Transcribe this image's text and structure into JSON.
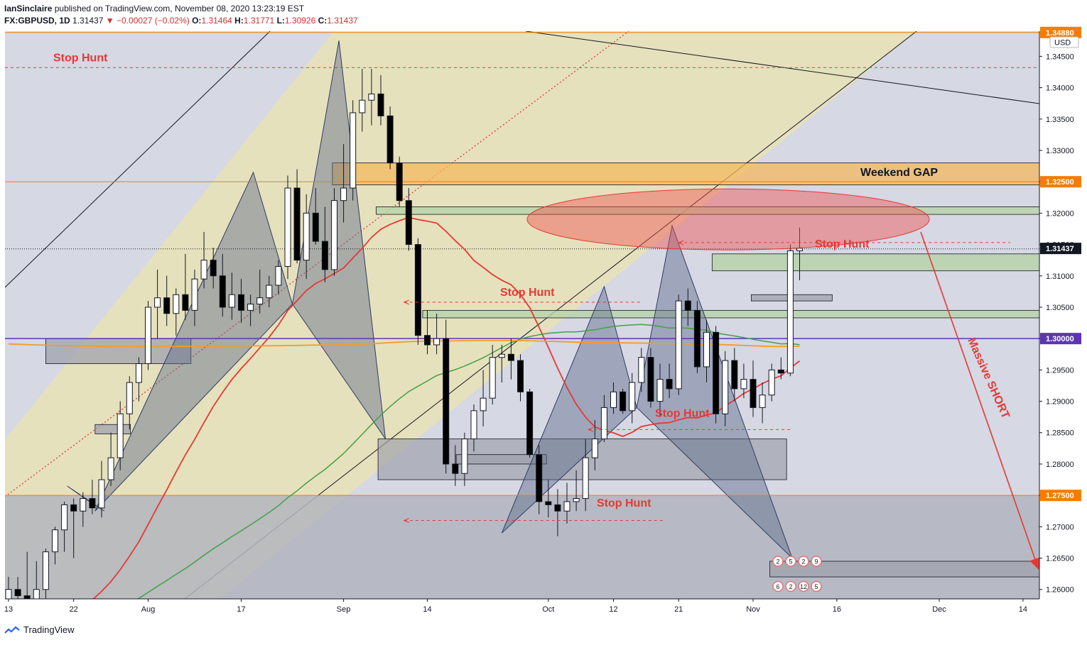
{
  "header": {
    "author": "IanSinclaire",
    "published_text": "published on TradingView.com, November 08, 2020 13:23:19 EST",
    "symbol": "FX:GBPUSD, 1D",
    "last": "1.31437",
    "change_arrow": "▼",
    "change": "−0.00027 (−0.02%)",
    "o_label": "O:",
    "o": "1.31464",
    "h_label": "H:",
    "h": "1.31771",
    "l_label": "L:",
    "l": "1.30926",
    "c_label": "C:",
    "c": "1.31437"
  },
  "footer": {
    "brand": "TradingView",
    "logo_icon": "tradingview-logo-icon"
  },
  "chart_data": {
    "type": "candlestick",
    "currency_label": "USD",
    "price_axis": {
      "range": [
        1.2585,
        1.349
      ],
      "ticks": [
        "1.34500",
        "1.34000",
        "1.33500",
        "1.33000",
        "1.32500",
        "1.32000",
        "1.31500",
        "1.31000",
        "1.30500",
        "1.30000",
        "1.29500",
        "1.29000",
        "1.28500",
        "1.28000",
        "1.27500",
        "1.27000",
        "1.26500",
        "1.26000"
      ]
    },
    "time_axis": {
      "ticks": [
        {
          "label": "13",
          "i": 0
        },
        {
          "label": "22",
          "i": 7
        },
        {
          "label": "Aug",
          "i": 15
        },
        {
          "label": "17",
          "i": 25
        },
        {
          "label": "Sep",
          "i": 36
        },
        {
          "label": "14",
          "i": 45
        },
        {
          "label": "Oct",
          "i": 58
        },
        {
          "label": "12",
          "i": 65
        },
        {
          "label": "21",
          "i": 72
        },
        {
          "label": "Nov",
          "i": 80
        },
        {
          "label": "16",
          "i": 89
        },
        {
          "label": "Dec",
          "i": 100
        },
        {
          "label": "14",
          "i": 109
        }
      ]
    },
    "price_labels": [
      {
        "price": 1.3488,
        "text": "1.34880",
        "color": "#f57c00"
      },
      {
        "price": 1.325,
        "text": "1.32500",
        "color": "#f57c00"
      },
      {
        "price": 1.31437,
        "text": "1.31437",
        "color": "#131722"
      },
      {
        "price": 1.3,
        "text": "1.30000",
        "color": "#5e35b1"
      },
      {
        "price": 1.275,
        "text": "1.27500",
        "color": "#f57c00"
      }
    ],
    "candles": [
      {
        "o": 1.2575,
        "h": 1.262,
        "l": 1.257,
        "c": 1.26
      },
      {
        "o": 1.26,
        "h": 1.262,
        "l": 1.2575,
        "c": 1.259
      },
      {
        "o": 1.259,
        "h": 1.266,
        "l": 1.257,
        "c": 1.2585
      },
      {
        "o": 1.2585,
        "h": 1.2645,
        "l": 1.2555,
        "c": 1.26
      },
      {
        "o": 1.26,
        "h": 1.2665,
        "l": 1.2575,
        "c": 1.266
      },
      {
        "o": 1.266,
        "h": 1.27,
        "l": 1.264,
        "c": 1.2695
      },
      {
        "o": 1.2695,
        "h": 1.274,
        "l": 1.266,
        "c": 1.2735
      },
      {
        "o": 1.2735,
        "h": 1.2745,
        "l": 1.265,
        "c": 1.2725
      },
      {
        "o": 1.2725,
        "h": 1.2755,
        "l": 1.27,
        "c": 1.2745
      },
      {
        "o": 1.2745,
        "h": 1.2775,
        "l": 1.272,
        "c": 1.273
      },
      {
        "o": 1.273,
        "h": 1.2805,
        "l": 1.2715,
        "c": 1.2775
      },
      {
        "o": 1.2775,
        "h": 1.285,
        "l": 1.2765,
        "c": 1.281
      },
      {
        "o": 1.281,
        "h": 1.29,
        "l": 1.279,
        "c": 1.288
      },
      {
        "o": 1.288,
        "h": 1.294,
        "l": 1.2855,
        "c": 1.293
      },
      {
        "o": 1.293,
        "h": 1.297,
        "l": 1.29,
        "c": 1.296
      },
      {
        "o": 1.296,
        "h": 1.306,
        "l": 1.295,
        "c": 1.305
      },
      {
        "o": 1.305,
        "h": 1.311,
        "l": 1.3,
        "c": 1.3065
      },
      {
        "o": 1.3065,
        "h": 1.31,
        "l": 1.302,
        "c": 1.304
      },
      {
        "o": 1.304,
        "h": 1.308,
        "l": 1.3005,
        "c": 1.307
      },
      {
        "o": 1.307,
        "h": 1.3135,
        "l": 1.303,
        "c": 1.3045
      },
      {
        "o": 1.3045,
        "h": 1.311,
        "l": 1.302,
        "c": 1.3095
      },
      {
        "o": 1.3095,
        "h": 1.317,
        "l": 1.308,
        "c": 1.3125
      },
      {
        "o": 1.3125,
        "h": 1.3145,
        "l": 1.308,
        "c": 1.31
      },
      {
        "o": 1.31,
        "h": 1.3135,
        "l": 1.3035,
        "c": 1.305
      },
      {
        "o": 1.305,
        "h": 1.3105,
        "l": 1.303,
        "c": 1.307
      },
      {
        "o": 1.307,
        "h": 1.3095,
        "l": 1.3025,
        "c": 1.3045
      },
      {
        "o": 1.3045,
        "h": 1.307,
        "l": 1.302,
        "c": 1.3055
      },
      {
        "o": 1.3055,
        "h": 1.311,
        "l": 1.304,
        "c": 1.3065
      },
      {
        "o": 1.3065,
        "h": 1.31,
        "l": 1.305,
        "c": 1.3085
      },
      {
        "o": 1.3085,
        "h": 1.3125,
        "l": 1.307,
        "c": 1.3115
      },
      {
        "o": 1.3115,
        "h": 1.326,
        "l": 1.3095,
        "c": 1.324
      },
      {
        "o": 1.324,
        "h": 1.327,
        "l": 1.312,
        "c": 1.3125
      },
      {
        "o": 1.3125,
        "h": 1.323,
        "l": 1.3095,
        "c": 1.32
      },
      {
        "o": 1.32,
        "h": 1.324,
        "l": 1.315,
        "c": 1.3155
      },
      {
        "o": 1.3155,
        "h": 1.321,
        "l": 1.309,
        "c": 1.311
      },
      {
        "o": 1.311,
        "h": 1.324,
        "l": 1.31,
        "c": 1.322
      },
      {
        "o": 1.322,
        "h": 1.331,
        "l": 1.3185,
        "c": 1.324
      },
      {
        "o": 1.324,
        "h": 1.338,
        "l": 1.322,
        "c": 1.336
      },
      {
        "o": 1.336,
        "h": 1.343,
        "l": 1.333,
        "c": 1.338
      },
      {
        "o": 1.338,
        "h": 1.343,
        "l": 1.334,
        "c": 1.339
      },
      {
        "o": 1.339,
        "h": 1.342,
        "l": 1.334,
        "c": 1.3355
      },
      {
        "o": 1.3355,
        "h": 1.337,
        "l": 1.327,
        "c": 1.328
      },
      {
        "o": 1.328,
        "h": 1.329,
        "l": 1.321,
        "c": 1.322
      },
      {
        "o": 1.322,
        "h": 1.324,
        "l": 1.314,
        "c": 1.315
      },
      {
        "o": 1.315,
        "h": 1.316,
        "l": 1.299,
        "c": 1.3005
      },
      {
        "o": 1.3005,
        "h": 1.3045,
        "l": 1.2975,
        "c": 1.299
      },
      {
        "o": 1.299,
        "h": 1.304,
        "l": 1.2975,
        "c": 1.3
      },
      {
        "o": 1.3,
        "h": 1.303,
        "l": 1.2785,
        "c": 1.28
      },
      {
        "o": 1.28,
        "h": 1.283,
        "l": 1.2765,
        "c": 1.2785
      },
      {
        "o": 1.2785,
        "h": 1.285,
        "l": 1.2765,
        "c": 1.284
      },
      {
        "o": 1.284,
        "h": 1.2895,
        "l": 1.282,
        "c": 1.2885
      },
      {
        "o": 1.2885,
        "h": 1.295,
        "l": 1.286,
        "c": 1.2905
      },
      {
        "o": 1.2905,
        "h": 1.299,
        "l": 1.2895,
        "c": 1.297
      },
      {
        "o": 1.297,
        "h": 1.299,
        "l": 1.293,
        "c": 1.2975
      },
      {
        "o": 1.2975,
        "h": 1.3,
        "l": 1.2935,
        "c": 1.2965
      },
      {
        "o": 1.2965,
        "h": 1.2975,
        "l": 1.29,
        "c": 1.2915
      },
      {
        "o": 1.2915,
        "h": 1.292,
        "l": 1.281,
        "c": 1.2815
      },
      {
        "o": 1.2815,
        "h": 1.283,
        "l": 1.272,
        "c": 1.274
      },
      {
        "o": 1.274,
        "h": 1.2775,
        "l": 1.2715,
        "c": 1.2735
      },
      {
        "o": 1.2735,
        "h": 1.276,
        "l": 1.2685,
        "c": 1.2725
      },
      {
        "o": 1.2725,
        "h": 1.277,
        "l": 1.2705,
        "c": 1.274
      },
      {
        "o": 1.274,
        "h": 1.279,
        "l": 1.2725,
        "c": 1.2745
      },
      {
        "o": 1.2745,
        "h": 1.284,
        "l": 1.2725,
        "c": 1.281
      },
      {
        "o": 1.281,
        "h": 1.287,
        "l": 1.279,
        "c": 1.284
      },
      {
        "o": 1.284,
        "h": 1.291,
        "l": 1.2835,
        "c": 1.289
      },
      {
        "o": 1.289,
        "h": 1.293,
        "l": 1.288,
        "c": 1.2915
      },
      {
        "o": 1.2915,
        "h": 1.292,
        "l": 1.288,
        "c": 1.2885
      },
      {
        "o": 1.2885,
        "h": 1.2945,
        "l": 1.2865,
        "c": 1.293
      },
      {
        "o": 1.293,
        "h": 1.2985,
        "l": 1.2915,
        "c": 1.297
      },
      {
        "o": 1.297,
        "h": 1.2985,
        "l": 1.289,
        "c": 1.29
      },
      {
        "o": 1.29,
        "h": 1.296,
        "l": 1.2875,
        "c": 1.2935
      },
      {
        "o": 1.2935,
        "h": 1.296,
        "l": 1.2905,
        "c": 1.292
      },
      {
        "o": 1.292,
        "h": 1.307,
        "l": 1.291,
        "c": 1.306
      },
      {
        "o": 1.306,
        "h": 1.308,
        "l": 1.302,
        "c": 1.3045
      },
      {
        "o": 1.3045,
        "h": 1.306,
        "l": 1.2945,
        "c": 1.2955
      },
      {
        "o": 1.2955,
        "h": 1.303,
        "l": 1.293,
        "c": 1.301
      },
      {
        "o": 1.301,
        "h": 1.302,
        "l": 1.2865,
        "c": 1.288
      },
      {
        "o": 1.288,
        "h": 1.298,
        "l": 1.286,
        "c": 1.2965
      },
      {
        "o": 1.2965,
        "h": 1.2985,
        "l": 1.29,
        "c": 1.292
      },
      {
        "o": 1.292,
        "h": 1.296,
        "l": 1.2905,
        "c": 1.2935
      },
      {
        "o": 1.2935,
        "h": 1.2965,
        "l": 1.2875,
        "c": 1.289
      },
      {
        "o": 1.289,
        "h": 1.293,
        "l": 1.2865,
        "c": 1.291
      },
      {
        "o": 1.291,
        "h": 1.296,
        "l": 1.29,
        "c": 1.295
      },
      {
        "o": 1.295,
        "h": 1.297,
        "l": 1.2935,
        "c": 1.2945
      },
      {
        "o": 1.2945,
        "h": 1.315,
        "l": 1.294,
        "c": 1.314
      },
      {
        "o": 1.314,
        "h": 1.3177,
        "l": 1.3093,
        "c": 1.3144
      }
    ],
    "overlays": [
      {
        "name": "Stop Hunt",
        "price": 1.3432,
        "label_i": 8
      },
      {
        "name": "Weekend GAP",
        "price": 1.3265
      },
      {
        "name": "Stop Hunt",
        "price": 1.3153,
        "label_i": 81
      },
      {
        "name": "Stop Hunt",
        "price": 1.3058,
        "label_i": 52
      },
      {
        "name": "Stop Hunt",
        "price": 1.2865,
        "label_i": 68
      },
      {
        "name": "Stop Hunt",
        "price": 1.2722,
        "label_i": 65
      },
      {
        "name": "Massive SHORT",
        "price": 1.287
      }
    ],
    "event_markers": {
      "row1": [
        "2",
        "5",
        "2",
        "9"
      ],
      "row2": [
        "6",
        "2",
        "12",
        "5"
      ]
    }
  }
}
